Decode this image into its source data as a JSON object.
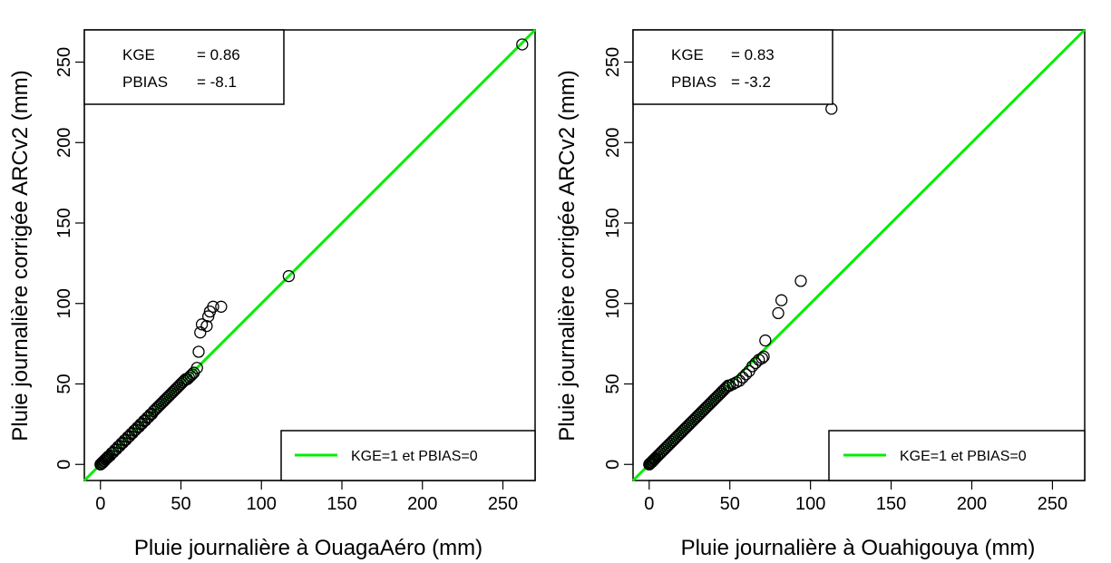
{
  "chart_data": [
    {
      "type": "scatter",
      "xlabel": "Pluie journalière   à OuagaAéro (mm)",
      "ylabel": "Pluie journalière corrigée ARCv2 (mm)",
      "xlim": [
        -10,
        270
      ],
      "ylim": [
        -10,
        270
      ],
      "x_ticks": [
        "0",
        "50",
        "100",
        "150",
        "200",
        "250"
      ],
      "y_ticks": [
        "0",
        "50",
        "100",
        "150",
        "200",
        "250"
      ],
      "stats": {
        "kge_label": "KGE",
        "kge_value": "=  0.86",
        "pbias_label": "PBIAS",
        "pbias_value": "= -8.1"
      },
      "legend": {
        "label": "KGE=1 et PBIAS=0",
        "color": "#00ee00",
        "position": "bottom-right"
      },
      "reference_line": {
        "type": "identity",
        "color": "#00ee00"
      },
      "grid": false,
      "points": [
        [
          0,
          0
        ],
        [
          0.5,
          0.3
        ],
        [
          1,
          1
        ],
        [
          1.5,
          1.2
        ],
        [
          2,
          2
        ],
        [
          2.5,
          2.2
        ],
        [
          3,
          3
        ],
        [
          3.5,
          3.4
        ],
        [
          4,
          4
        ],
        [
          4.5,
          4.2
        ],
        [
          5,
          5
        ],
        [
          6,
          5.5
        ],
        [
          7,
          7
        ],
        [
          8,
          7.6
        ],
        [
          9,
          9
        ],
        [
          10,
          9.5
        ],
        [
          11,
          11
        ],
        [
          12,
          11.5
        ],
        [
          13,
          13
        ],
        [
          14,
          13.5
        ],
        [
          15,
          15
        ],
        [
          16,
          15.4
        ],
        [
          17,
          17
        ],
        [
          18,
          17.5
        ],
        [
          19,
          19
        ],
        [
          20,
          19.5
        ],
        [
          21,
          21
        ],
        [
          22,
          21.6
        ],
        [
          23,
          23
        ],
        [
          24,
          23.4
        ],
        [
          25,
          25
        ],
        [
          26,
          25.5
        ],
        [
          27,
          27
        ],
        [
          28,
          27.4
        ],
        [
          29,
          29
        ],
        [
          30,
          29.5
        ],
        [
          31,
          31
        ],
        [
          32,
          31.4
        ],
        [
          33,
          33
        ],
        [
          34,
          34
        ],
        [
          35,
          35
        ],
        [
          36,
          36
        ],
        [
          37,
          37
        ],
        [
          38,
          38
        ],
        [
          39,
          39
        ],
        [
          40,
          40
        ],
        [
          41,
          41
        ],
        [
          42,
          42
        ],
        [
          43,
          43
        ],
        [
          44,
          44
        ],
        [
          45,
          45
        ],
        [
          46,
          46
        ],
        [
          47,
          47
        ],
        [
          48,
          48
        ],
        [
          49,
          49
        ],
        [
          50,
          50
        ],
        [
          51,
          51
        ],
        [
          52,
          52
        ],
        [
          53,
          53
        ],
        [
          54,
          53
        ],
        [
          55,
          54
        ],
        [
          56,
          55
        ],
        [
          57,
          56
        ],
        [
          58,
          57
        ],
        [
          60,
          60
        ],
        [
          61,
          70
        ],
        [
          62,
          82
        ],
        [
          63,
          87
        ],
        [
          66,
          86
        ],
        [
          67,
          92
        ],
        [
          68,
          95
        ],
        [
          70,
          98
        ],
        [
          75,
          98
        ],
        [
          117,
          117
        ],
        [
          262,
          261
        ]
      ]
    },
    {
      "type": "scatter",
      "xlabel": "Pluie journalière   à Ouahigouya (mm)",
      "ylabel": "Pluie journalière corrigée ARCv2 (mm)",
      "xlim": [
        -10,
        270
      ],
      "ylim": [
        -10,
        270
      ],
      "x_ticks": [
        "0",
        "50",
        "100",
        "150",
        "200",
        "250"
      ],
      "y_ticks": [
        "0",
        "50",
        "100",
        "150",
        "200",
        "250"
      ],
      "stats": {
        "kge_label": "KGE",
        "kge_value": "=   0.83",
        "pbias_label": "PBIAS",
        "pbias_value": "= -3.2"
      },
      "legend": {
        "label": "KGE=1 et PBIAS=0",
        "color": "#00ee00",
        "position": "bottom-right"
      },
      "reference_line": {
        "type": "identity",
        "color": "#00ee00"
      },
      "grid": false,
      "points": [
        [
          0,
          0
        ],
        [
          0.5,
          0.5
        ],
        [
          1,
          1
        ],
        [
          1.5,
          1.3
        ],
        [
          2,
          2
        ],
        [
          2.5,
          2.3
        ],
        [
          3,
          3
        ],
        [
          3.5,
          3.4
        ],
        [
          4,
          4
        ],
        [
          5,
          5
        ],
        [
          6,
          6
        ],
        [
          7,
          7
        ],
        [
          8,
          8
        ],
        [
          9,
          9
        ],
        [
          10,
          10
        ],
        [
          11,
          11
        ],
        [
          12,
          12
        ],
        [
          13,
          13
        ],
        [
          14,
          14
        ],
        [
          15,
          15
        ],
        [
          16,
          16
        ],
        [
          17,
          17
        ],
        [
          18,
          18
        ],
        [
          19,
          19
        ],
        [
          20,
          20
        ],
        [
          21,
          21
        ],
        [
          22,
          22
        ],
        [
          23,
          23
        ],
        [
          24,
          24
        ],
        [
          25,
          25
        ],
        [
          26,
          26
        ],
        [
          27,
          27
        ],
        [
          28,
          28
        ],
        [
          29,
          29
        ],
        [
          30,
          30
        ],
        [
          31,
          31
        ],
        [
          32,
          32
        ],
        [
          33,
          33
        ],
        [
          34,
          34
        ],
        [
          35,
          35
        ],
        [
          36,
          36
        ],
        [
          37,
          37
        ],
        [
          38,
          38
        ],
        [
          39,
          39
        ],
        [
          40,
          40
        ],
        [
          41,
          41
        ],
        [
          42,
          42
        ],
        [
          43,
          43
        ],
        [
          44,
          44
        ],
        [
          45,
          45
        ],
        [
          46,
          46
        ],
        [
          47,
          47
        ],
        [
          48,
          48
        ],
        [
          49,
          49
        ],
        [
          50,
          49
        ],
        [
          52,
          50
        ],
        [
          54,
          51
        ],
        [
          56,
          52
        ],
        [
          58,
          54
        ],
        [
          60,
          56
        ],
        [
          62,
          58
        ],
        [
          64,
          61
        ],
        [
          66,
          63
        ],
        [
          68,
          65
        ],
        [
          70,
          66
        ],
        [
          71,
          67
        ],
        [
          72,
          77
        ],
        [
          80,
          94
        ],
        [
          82,
          102
        ],
        [
          94,
          114
        ],
        [
          113,
          221
        ]
      ]
    }
  ]
}
